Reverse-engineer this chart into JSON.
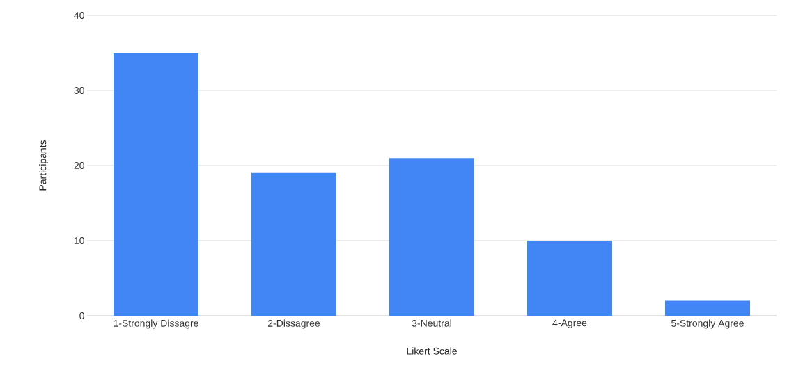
{
  "chart_data": {
    "type": "bar",
    "xlabel": "Likert Scale",
    "ylabel": "Participants",
    "categories": [
      "1-Strongly Dissagre",
      "2-Dissagree",
      "3-Neutral",
      "4-Agree",
      "5-Strongly Agree"
    ],
    "values": [
      35,
      19,
      21,
      10,
      2
    ],
    "color": "#4285f4",
    "ylim": [
      0,
      40
    ],
    "yticks": [
      0,
      10,
      20,
      30,
      40
    ],
    "grid": "y"
  }
}
